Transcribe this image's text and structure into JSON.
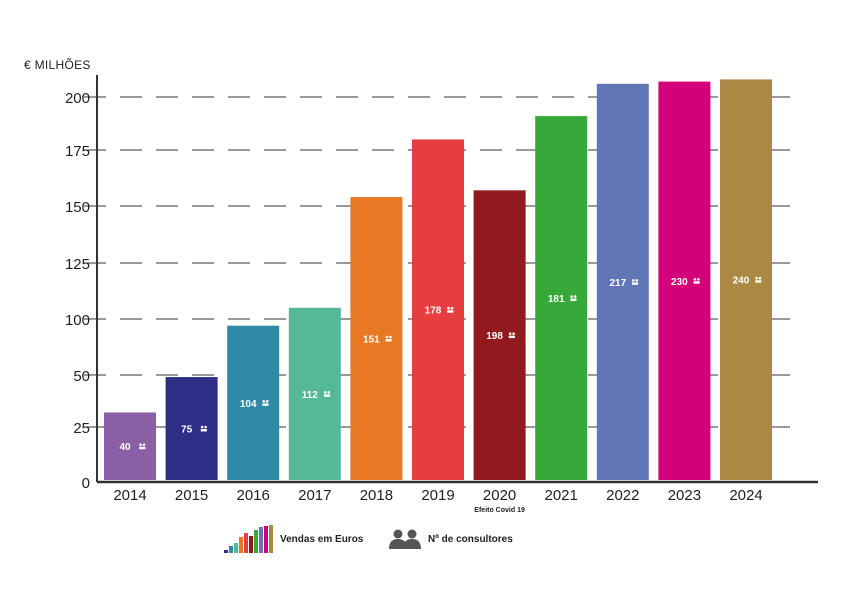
{
  "chart_data": {
    "type": "bar",
    "unit_label": "€ MILHÕES",
    "categories": [
      "2014",
      "2015",
      "2016",
      "2017",
      "2018",
      "2019",
      "2020",
      "2021",
      "2022",
      "2023",
      "2024"
    ],
    "values": [
      32,
      49,
      94,
      105,
      154,
      180,
      157,
      191,
      206,
      207,
      208
    ],
    "consultants": [
      "40",
      "75",
      "104",
      "112",
      "151",
      "178",
      "198",
      "181",
      "217",
      "230",
      "240"
    ],
    "colors": [
      "#8b5fa5",
      "#2d2f86",
      "#2f8aa6",
      "#55b897",
      "#e97824",
      "#e63e3e",
      "#921a1e",
      "#37a93b",
      "#6276b7",
      "#d4007a",
      "#ac8943"
    ],
    "annotation": {
      "category": "2020",
      "text": "Efeito Covid 19"
    },
    "yticks": [
      0,
      25,
      50,
      100,
      125,
      150,
      175,
      200
    ],
    "ylim": [
      0,
      210
    ],
    "legend": [
      {
        "key": "sales",
        "label": "Vendas em Euros",
        "icon": "bar-chart-icon"
      },
      {
        "key": "consultants",
        "label": "Nº de consultores",
        "icon": "people-icon"
      }
    ]
  }
}
